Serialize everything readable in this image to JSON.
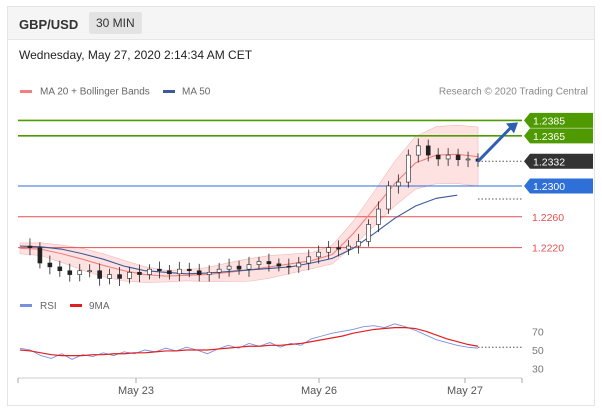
{
  "header": {
    "pair": "GBP/USD",
    "timeframe": "30 MIN"
  },
  "datetime": "Wednesday, May 27, 2020 2:14:34 AM CET",
  "legend": {
    "ma20": "MA 20 + Bollinger Bands",
    "ma50": "MA 50",
    "credit": "Research © 2020 Trading Central",
    "rsi": "RSI",
    "rsi_ma": "9MA"
  },
  "colors": {
    "resistance": "#4f9a00",
    "current": "#333333",
    "pivot": "#2e6fd8",
    "support": "#e05050",
    "bollinger": "#fdd6d6",
    "ma20": "#f08080",
    "ma50": "#3a5a99",
    "candle": "#222222",
    "arrow": "#2e5fb2",
    "rsi": "#7a8fe0",
    "rsi_ma": "#e02020"
  },
  "chart_data": [
    {
      "type": "line",
      "title": "",
      "ylim": [
        1.2165,
        1.2405
      ],
      "x_ticks": [
        "May 23",
        "May 26",
        "May 27"
      ],
      "levels": [
        {
          "label": "1.2385",
          "value": 1.2385,
          "kind": "resistance"
        },
        {
          "label": "1.2365",
          "value": 1.2365,
          "kind": "resistance"
        },
        {
          "label": "1.2332",
          "value": 1.2332,
          "kind": "current"
        },
        {
          "label": "1.2300",
          "value": 1.23,
          "kind": "pivot"
        },
        {
          "label": "1.2260",
          "value": 1.226,
          "kind": "support"
        },
        {
          "label": "1.2220",
          "value": 1.222,
          "kind": "support"
        }
      ],
      "series": [
        {
          "name": "MA 20 + Bollinger Bands",
          "values": [
            1.2219,
            1.2218,
            1.2212,
            1.2205,
            1.2197,
            1.219,
            1.2185,
            1.2183,
            1.2184,
            1.2185,
            1.2188,
            1.2191,
            1.2195,
            1.2199,
            1.2203,
            1.2211,
            1.2238,
            1.227,
            1.2303,
            1.233,
            1.234,
            1.2341,
            1.2338
          ]
        },
        {
          "name": "MA 50",
          "values": [
            1.2222,
            1.2221,
            1.2218,
            1.2212,
            1.2205,
            1.2196,
            1.219,
            1.2188,
            1.2186,
            1.2187,
            1.2189,
            1.2191,
            1.2193,
            1.2195,
            1.22,
            1.2206,
            1.2219,
            1.2238,
            1.2258,
            1.2274,
            1.2284,
            1.2288
          ]
        }
      ],
      "price": [
        1.2222,
        1.222,
        1.22,
        1.2195,
        1.219,
        1.2185,
        1.219,
        1.219,
        1.218,
        1.2185,
        1.218,
        1.2188,
        1.2185,
        1.2192,
        1.219,
        1.2186,
        1.2192,
        1.219,
        1.2185,
        1.2188,
        1.2192,
        1.2196,
        1.2192,
        1.2198,
        1.2202,
        1.2199,
        1.2196,
        1.2195,
        1.22,
        1.2208,
        1.2214,
        1.222,
        1.2218,
        1.2222,
        1.2228,
        1.225,
        1.227,
        1.23,
        1.2305,
        1.234,
        1.2352,
        1.234,
        1.2335,
        1.234,
        1.2334,
        1.2335,
        1.2332
      ],
      "forecast_arrow": {
        "from": 1.2332,
        "to": 1.2385
      }
    },
    {
      "type": "line",
      "title": "",
      "ylim": [
        20,
        80
      ],
      "y_ticks": [
        70,
        50,
        30
      ],
      "series": [
        {
          "name": "RSI",
          "values": [
            52,
            50,
            44,
            41,
            46,
            40,
            45,
            43,
            47,
            44,
            48,
            46,
            50,
            48,
            52,
            49,
            53,
            50,
            46,
            51,
            55,
            52,
            57,
            54,
            58,
            53,
            57,
            55,
            62,
            65,
            68,
            70,
            72,
            75,
            76,
            74,
            78,
            75,
            71,
            66,
            61,
            58,
            55,
            53,
            52
          ]
        },
        {
          "name": "9MA",
          "values": [
            50,
            49,
            47,
            45,
            44,
            44,
            44,
            45,
            45,
            46,
            46,
            47,
            47,
            48,
            49,
            49,
            50,
            50,
            50,
            51,
            52,
            53,
            54,
            54,
            55,
            55,
            56,
            57,
            59,
            61,
            63,
            65,
            68,
            70,
            72,
            73,
            74,
            74,
            73,
            70,
            66,
            62,
            59,
            56,
            54
          ]
        }
      ]
    }
  ]
}
